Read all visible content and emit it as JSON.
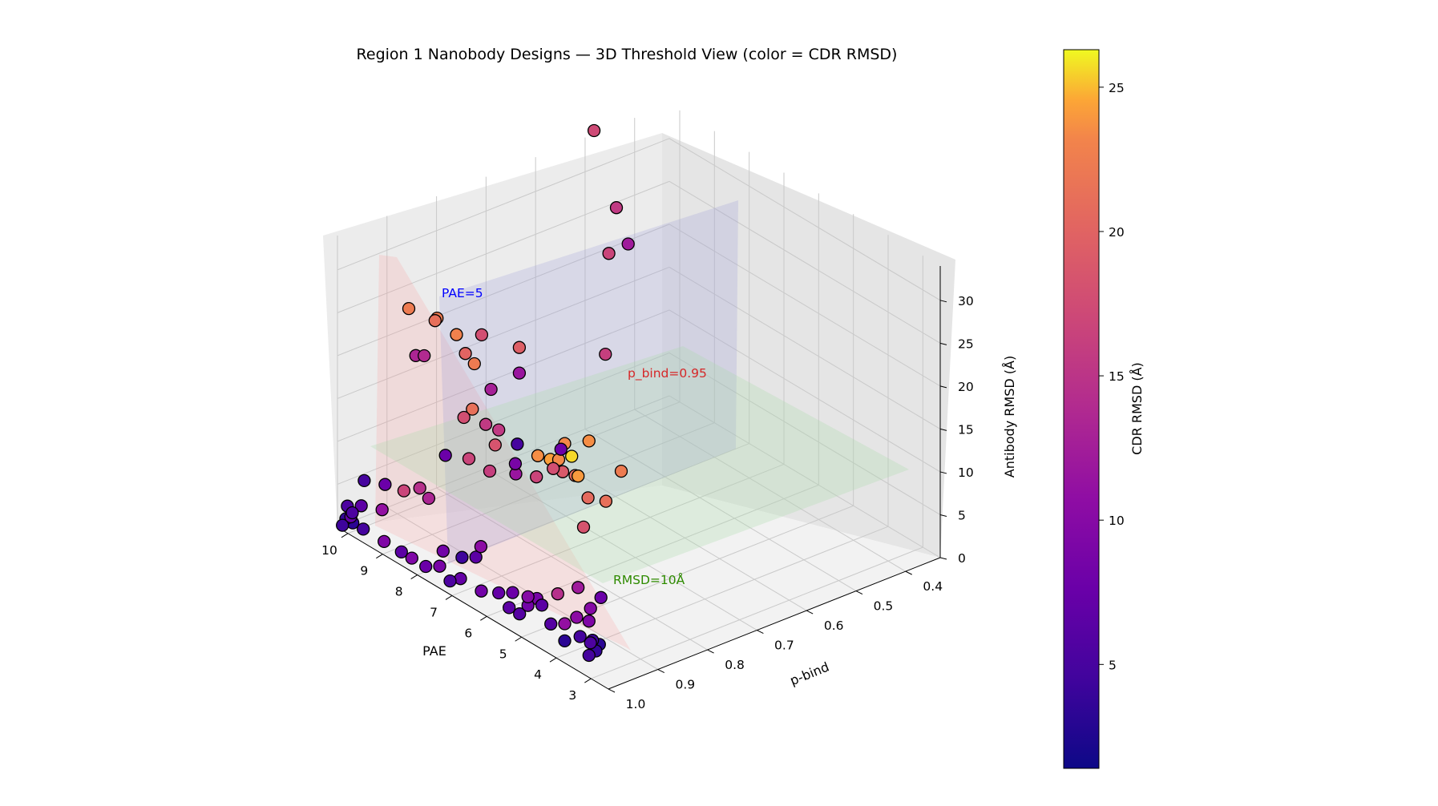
{
  "chart_data": {
    "type": "scatter3d",
    "title": "Region 1 Nanobody Designs — 3D Threshold View (color = CDR RMSD)",
    "xlabel": "PAE",
    "ylabel": "p-bind",
    "zlabel": "Antibody RMSD (Å)",
    "colorbar_label": "CDR RMSD (Å)",
    "colormap": "plasma",
    "xlim": [
      2.5,
      10.3
    ],
    "ylim": [
      0.33,
      1.0
    ],
    "zlim": [
      0,
      34
    ],
    "clim": [
      1.4,
      26.3
    ],
    "x_ticks": [
      "3",
      "4",
      "5",
      "6",
      "7",
      "8",
      "9",
      "10"
    ],
    "y_ticks": [
      "0.4",
      "0.5",
      "0.6",
      "0.7",
      "0.8",
      "0.9",
      "1.0"
    ],
    "z_ticks": [
      "0",
      "5",
      "10",
      "15",
      "20",
      "25",
      "30"
    ],
    "colorbar_ticks": [
      "5",
      "10",
      "15",
      "20",
      "25"
    ],
    "thresholds": [
      {
        "label": "PAE=5",
        "axis": "x",
        "value": 5,
        "color": "#ff8a8a"
      },
      {
        "label": "p_bind=0.95",
        "axis": "y",
        "value": 0.95,
        "color": "#8a8adc"
      },
      {
        "label": "RMSD=10Å",
        "axis": "z",
        "value": 10,
        "color": "#9fd69f"
      }
    ],
    "annotation_colors": {
      "PAE=5": "#0000ff",
      "p_bind=0.95": "#d62728",
      "RMSD=10Å": "#2e8b00"
    },
    "points": [
      [
        2.7,
        0.96,
        24,
        20.0
      ],
      [
        3.2,
        0.99,
        27,
        21.5
      ],
      [
        3.0,
        0.97,
        20,
        19.0
      ],
      [
        3.6,
        0.99,
        22,
        18.5
      ],
      [
        3.5,
        0.98,
        16,
        16.5
      ],
      [
        3.7,
        0.99,
        24,
        25.2
      ],
      [
        3.9,
        0.99,
        25,
        21.0
      ],
      [
        3.8,
        0.97,
        21,
        22.5
      ],
      [
        4.1,
        0.98,
        21,
        17.0
      ],
      [
        4.6,
        0.97,
        21,
        23.0
      ],
      [
        4.5,
        0.96,
        21,
        21.2
      ],
      [
        3.8,
        0.95,
        18,
        18.5
      ],
      [
        5.8,
        0.99,
        22,
        14.0
      ],
      [
        5.0,
        0.97,
        18,
        15.0
      ],
      [
        5.1,
        0.96,
        20,
        21.6
      ],
      [
        4.8,
        0.95,
        19,
        16.0
      ],
      [
        6.2,
        0.98,
        16,
        14.5
      ],
      [
        5.9,
        0.99,
        20,
        16.5
      ],
      [
        6.8,
        0.98,
        16,
        15.0
      ],
      [
        3.8,
        0.97,
        8,
        11.0
      ],
      [
        3.0,
        0.98,
        9,
        7.0
      ],
      [
        3.3,
        0.98,
        7,
        9.0
      ],
      [
        3.2,
        0.99,
        6,
        8.5
      ],
      [
        4.1,
        0.99,
        7,
        13.0
      ],
      [
        3.7,
        0.98,
        5,
        9.5
      ],
      [
        3.9,
        0.99,
        4,
        10.0
      ],
      [
        3.1,
        0.99,
        4,
        4.0
      ],
      [
        2.9,
        0.99,
        4,
        3.0
      ],
      [
        3.0,
        0.99,
        3,
        3.5
      ],
      [
        3.3,
        0.98,
        3,
        5.0
      ],
      [
        3.6,
        0.98,
        3,
        4.5
      ],
      [
        4.3,
        0.99,
        3,
        5.5
      ],
      [
        4.7,
        0.98,
        4,
        6.0
      ],
      [
        5.1,
        0.98,
        3,
        7.5
      ],
      [
        5.2,
        0.99,
        2,
        5.5
      ],
      [
        5.5,
        0.99,
        2,
        6.0
      ],
      [
        5.8,
        0.99,
        3,
        6.5
      ],
      [
        4.7,
        0.99,
        5,
        8.0
      ],
      [
        5.4,
        0.99,
        4,
        7.0
      ],
      [
        5.1,
        0.98,
        4,
        9.0
      ],
      [
        3.2,
        0.99,
        2,
        4.5
      ],
      [
        3.9,
        0.99,
        2,
        3.0
      ],
      [
        6.6,
        0.98,
        5,
        6.0
      ],
      [
        6.3,
        0.99,
        2,
        7.5
      ],
      [
        6.9,
        0.99,
        2,
        6.5
      ],
      [
        6.6,
        0.97,
        6,
        9.5
      ],
      [
        7.5,
        0.99,
        2,
        8.0
      ],
      [
        7.9,
        0.99,
        1,
        7.0
      ],
      [
        8.3,
        0.99,
        1,
        8.5
      ],
      [
        8.6,
        0.99,
        1,
        6.0
      ],
      [
        7.0,
        0.98,
        4,
        4.0
      ],
      [
        7.4,
        0.99,
        4,
        7.5
      ],
      [
        7.2,
        0.99,
        1,
        5.0
      ],
      [
        9.7,
        0.99,
        1,
        4.5
      ],
      [
        10.0,
        0.99,
        1,
        3.0
      ],
      [
        7.5,
        0.92,
        24,
        20.0
      ],
      [
        7.9,
        0.91,
        24,
        18.0
      ],
      [
        8.3,
        0.9,
        25,
        20.5
      ],
      [
        9.0,
        0.89,
        25,
        20.0
      ],
      [
        9.2,
        0.88,
        24,
        19.0
      ],
      [
        10.1,
        0.87,
        23,
        20.0
      ],
      [
        7.6,
        0.89,
        16,
        14.0
      ],
      [
        7.7,
        0.91,
        18,
        19.0
      ],
      [
        8.8,
        0.85,
        13,
        16.0
      ],
      [
        8.5,
        0.96,
        8,
        13.0
      ],
      [
        8.1,
        0.97,
        8,
        12.0
      ],
      [
        9.1,
        0.95,
        6,
        15.0
      ],
      [
        9.3,
        0.98,
        4,
        10.0
      ],
      [
        9.1,
        0.99,
        1,
        8.5
      ],
      [
        9.9,
        0.98,
        3,
        6.0
      ],
      [
        10.1,
        0.96,
        5,
        4.5
      ],
      [
        10.2,
        0.98,
        1,
        6.5
      ],
      [
        10.3,
        0.97,
        1,
        5.0
      ],
      [
        10.2,
        0.99,
        1,
        3.5
      ],
      [
        10.3,
        0.99,
        0,
        4.0
      ],
      [
        10.3,
        0.98,
        2,
        5.0
      ],
      [
        9.5,
        0.96,
        6,
        7.0
      ],
      [
        8.2,
        0.78,
        21,
        17.5
      ],
      [
        9.0,
        0.8,
        21,
        16.0
      ],
      [
        9.8,
        0.86,
        18,
        12.5
      ],
      [
        9.9,
        0.87,
        18,
        12.0
      ],
      [
        9.3,
        0.76,
        13,
        11.5
      ],
      [
        9.2,
        0.71,
        14,
        10.5
      ],
      [
        9.9,
        0.81,
        5,
        7.0
      ],
      [
        9.4,
        0.7,
        5,
        4.5
      ],
      [
        9.0,
        0.64,
        4,
        7.0
      ],
      [
        9.3,
        0.71,
        2,
        10.5
      ],
      [
        9.6,
        0.69,
        2,
        8.0
      ],
      [
        9.9,
        0.51,
        36,
        15.5
      ],
      [
        9.4,
        0.5,
        28,
        14.0
      ],
      [
        9.9,
        0.48,
        21,
        15.0
      ],
      [
        10.2,
        0.42,
        20,
        11.0
      ],
      [
        10.0,
        0.48,
        9,
        14.5
      ]
    ]
  }
}
